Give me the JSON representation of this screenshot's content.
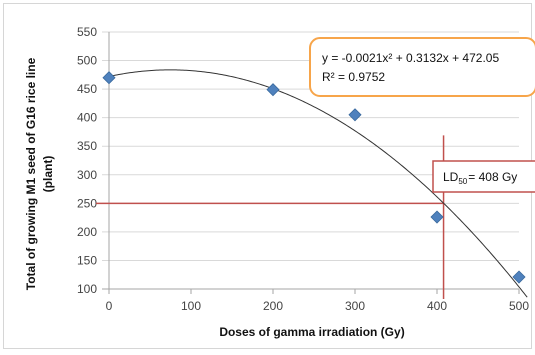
{
  "chart_data": {
    "type": "scatter",
    "xlabel": "Doses of gamma irradiation (Gy)",
    "ylabel_line1": "Total of growing M1 seed of G16 rice line",
    "ylabel_line2": "(plant)",
    "xlim": [
      0,
      500
    ],
    "ylim": [
      100,
      550
    ],
    "x_ticks": [
      0,
      100,
      200,
      300,
      400,
      500
    ],
    "y_ticks": [
      100,
      150,
      200,
      250,
      300,
      350,
      400,
      450,
      500,
      550
    ],
    "grid": "horizontal",
    "series": [
      {
        "points": [
          {
            "x": 0,
            "y": 470
          },
          {
            "x": 200,
            "y": 449
          },
          {
            "x": 300,
            "y": 405
          },
          {
            "x": 400,
            "y": 226
          },
          {
            "x": 500,
            "y": 121
          }
        ],
        "marker": "diamond",
        "color": "#4f81bd"
      }
    ],
    "trendline": {
      "type": "polynomial",
      "coefficients": {
        "a": -0.0021,
        "b": 0.3132,
        "c": 472.05
      },
      "color": "#333333"
    },
    "annotations": {
      "equation": "y = -0.0021x² + 0.3132x + 472.05",
      "r_squared": "R² = 0.9752",
      "equation_border": "#f7a54a",
      "ld_prefix": "LD",
      "ld_sub": "50",
      "ld_suffix": "= 408 Gy",
      "ld_border": "#c0504d"
    },
    "reference_lines": {
      "y": 250,
      "x": 408,
      "color": "#c0504d"
    }
  }
}
